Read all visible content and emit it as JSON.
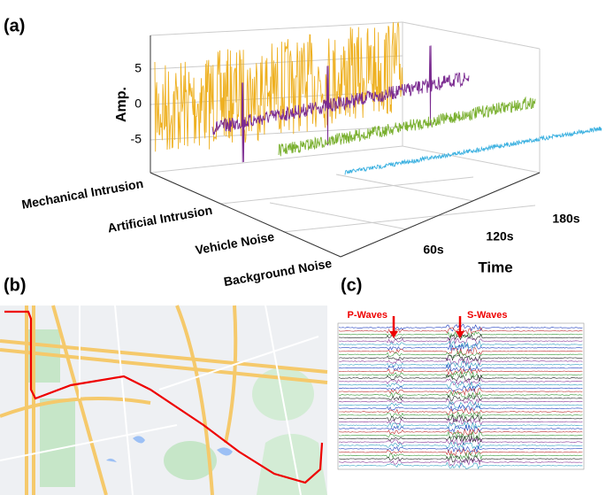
{
  "panels": [
    {
      "label": "(a)",
      "y_axis_label": "Amp.",
      "yticks": [
        "5",
        "0",
        "-5"
      ],
      "categories": [
        "Mechanical Intrusion",
        "Artificial Intrusion",
        "Vehicle Noise",
        "Background Noise"
      ],
      "x_axis_label": "Time",
      "xticks": [
        "60s",
        "120s",
        "180s"
      ]
    },
    {
      "label": "(b)"
    },
    {
      "label": "(c)",
      "annotations": [
        "P-Waves",
        "S-Waves"
      ]
    }
  ]
}
